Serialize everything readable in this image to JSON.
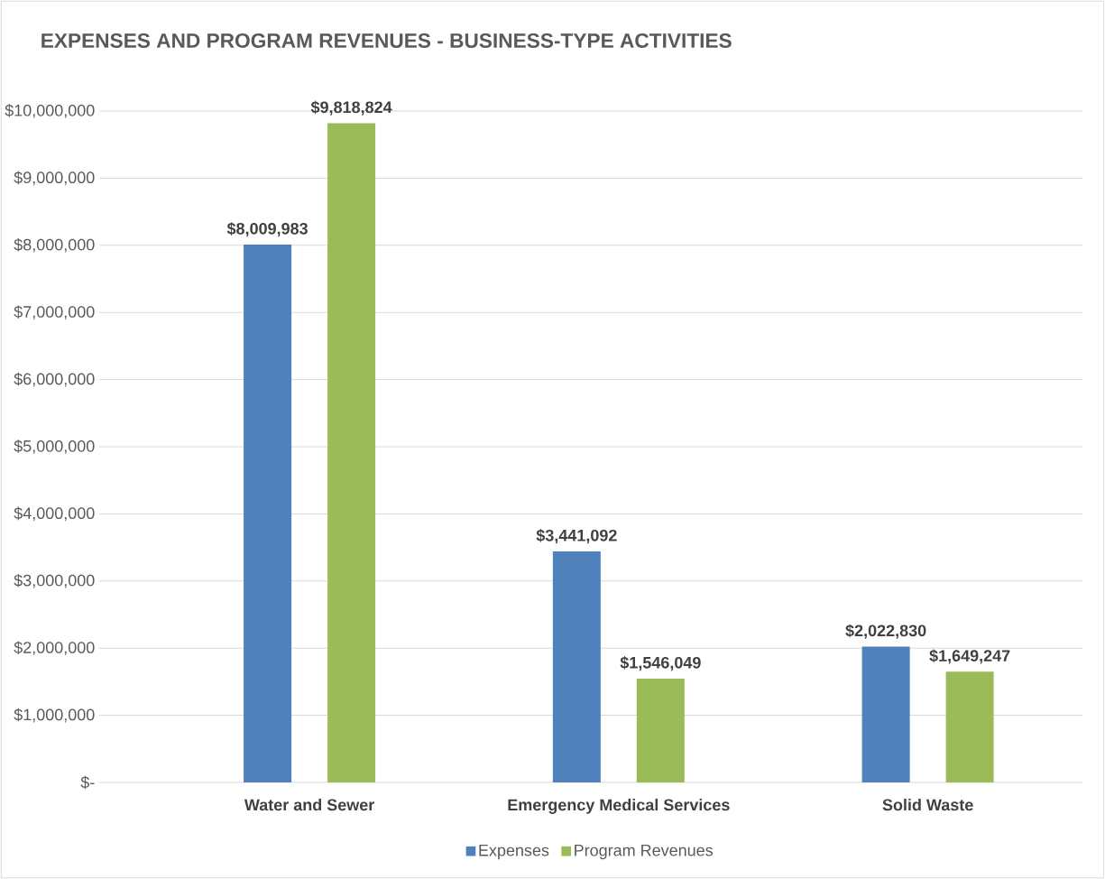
{
  "chart_data": {
    "type": "bar",
    "title": "EXPENSES AND PROGRAM REVENUES - BUSINESS-TYPE ACTIVITIES",
    "categories": [
      "Water and Sewer",
      "Emergency Medical Services",
      "Solid Waste"
    ],
    "series": [
      {
        "name": "Expenses",
        "color": "#4f81bd",
        "values": [
          8009983,
          3441092,
          2022830
        ],
        "value_labels": [
          "$8,009,983",
          "$3,441,092",
          "$2,022,830"
        ]
      },
      {
        "name": "Program Revenues",
        "color": "#9bbb59",
        "values": [
          9818824,
          1546049,
          1649247
        ],
        "value_labels": [
          "$9,818,824",
          "$1,546,049",
          "$1,649,247"
        ]
      }
    ],
    "ylim": [
      0,
      10000000
    ],
    "yticks": [
      {
        "value": 0,
        "label": "$-"
      },
      {
        "value": 1000000,
        "label": "$1,000,000"
      },
      {
        "value": 2000000,
        "label": "$2,000,000"
      },
      {
        "value": 3000000,
        "label": "$3,000,000"
      },
      {
        "value": 4000000,
        "label": "$4,000,000"
      },
      {
        "value": 5000000,
        "label": "$5,000,000"
      },
      {
        "value": 6000000,
        "label": "$6,000,000"
      },
      {
        "value": 7000000,
        "label": "$7,000,000"
      },
      {
        "value": 8000000,
        "label": "$8,000,000"
      },
      {
        "value": 9000000,
        "label": "$9,000,000"
      },
      {
        "value": 10000000,
        "label": "$10,000,000"
      }
    ],
    "grid": "y",
    "legend": "bottom"
  }
}
